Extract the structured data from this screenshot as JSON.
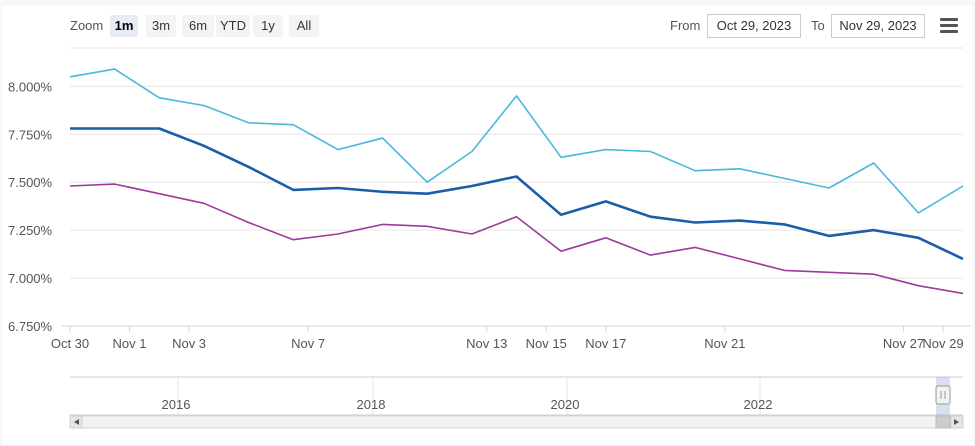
{
  "toolbar": {
    "zoom_label": "Zoom",
    "buttons": [
      "1m",
      "3m",
      "6m",
      "YTD",
      "1y",
      "All"
    ],
    "active": "1m",
    "from_label": "From",
    "from_value": "Oct 29, 2023",
    "to_label": "To",
    "to_value": "Nov 29, 2023"
  },
  "chart_data": {
    "type": "line",
    "title": "",
    "xlabel": "",
    "ylabel": "",
    "ylim": [
      6.75,
      8.2
    ],
    "y_ticks": [
      "6.750%",
      "7.000%",
      "7.250%",
      "7.500%",
      "7.750%",
      "8.000%"
    ],
    "x_ticks": [
      "Oct 30",
      "Nov 1",
      "Nov 3",
      "Nov 7",
      "Nov 13",
      "Nov 15",
      "Nov 17",
      "Nov 21",
      "Nov 27",
      "Nov 29"
    ],
    "grid": true,
    "series": [
      {
        "color": "#4ab8dc",
        "values": [
          8.05,
          8.09,
          7.94,
          7.9,
          7.81,
          7.8,
          7.67,
          7.73,
          7.5,
          7.66,
          7.95,
          7.63,
          7.67,
          7.66,
          7.56,
          7.57,
          7.52,
          7.47,
          7.6,
          7.34,
          7.48
        ]
      },
      {
        "color": "#1a5ea8",
        "values": [
          7.78,
          7.78,
          7.78,
          7.69,
          7.58,
          7.46,
          7.47,
          7.45,
          7.44,
          7.48,
          7.53,
          7.33,
          7.4,
          7.32,
          7.29,
          7.3,
          7.28,
          7.22,
          7.25,
          7.21,
          7.1
        ]
      },
      {
        "color": "#9c3b9c",
        "values": [
          7.48,
          7.49,
          7.44,
          7.39,
          7.29,
          7.2,
          7.23,
          7.28,
          7.27,
          7.23,
          7.32,
          7.14,
          7.21,
          7.12,
          7.16,
          7.1,
          7.04,
          7.03,
          7.02,
          6.96,
          6.92
        ]
      }
    ],
    "navigator": {
      "years": [
        "2016",
        "2018",
        "2020",
        "2022"
      ]
    }
  }
}
